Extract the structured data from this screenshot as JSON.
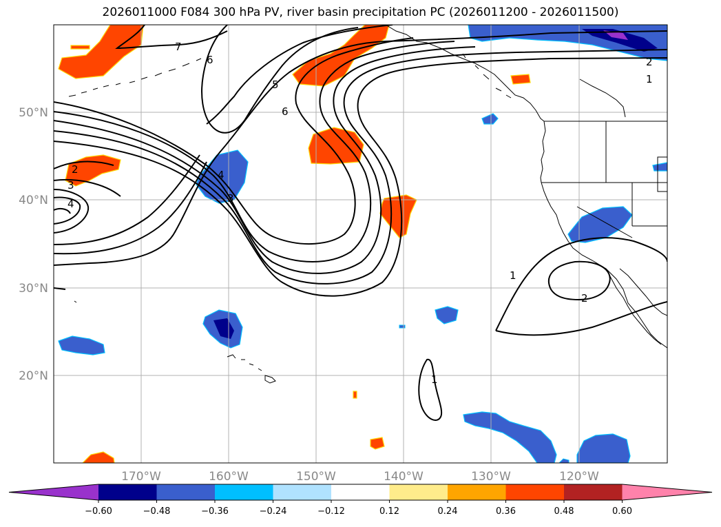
{
  "title": "2026011000 F084 300 hPa PV, river basin precipitation PC (2026011200 - 2026011500)",
  "lon_labels": [
    "170°W",
    "160°W",
    "150°W",
    "140°W",
    "130°W",
    "120°W"
  ],
  "lat_labels": [
    "50°N",
    "40°N",
    "30°N",
    "20°N"
  ],
  "colorbar": {
    "colors": [
      "#9932cc",
      "#00008b",
      "#3a5fcd",
      "#00bfff",
      "#b0e2ff",
      "#ffffff",
      "#ffec8b",
      "#ffa500",
      "#ff4500",
      "#b22222",
      "#ff82ab"
    ],
    "tick_labels": [
      "−0.60",
      "−0.48",
      "−0.36",
      "−0.24",
      "−0.12",
      "0.12",
      "0.24",
      "0.36",
      "0.48",
      "0.60"
    ]
  },
  "contour_labels": [
    "7",
    "6",
    "5",
    "6",
    "2",
    "3",
    "4",
    "4",
    "3",
    "2",
    "1",
    "1",
    "2",
    "1"
  ],
  "colors": {
    "land_outline": "#000000",
    "grid": "#b0b0b0",
    "contour": "#000000",
    "positive": "#ff4500",
    "negative": "#3a5fcd"
  }
}
